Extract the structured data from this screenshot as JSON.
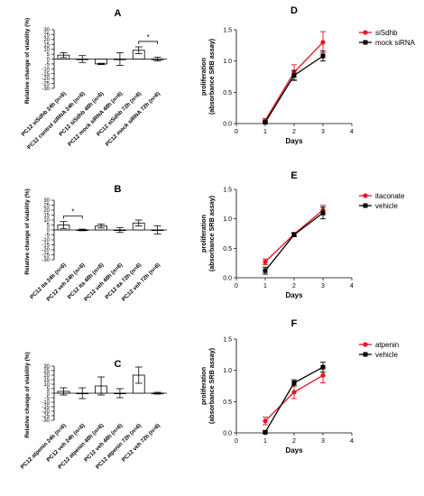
{
  "chart_data": [
    {
      "id": "A",
      "type": "bar",
      "panel_label": "A",
      "ylabel": "Relative change of viability (%)",
      "ylim": [
        -30,
        30
      ],
      "ytick_values": [
        -30,
        -25,
        -20,
        -15,
        -10,
        -5,
        0,
        5,
        10,
        15,
        20,
        25,
        30
      ],
      "yticks": [
        "-30",
        "-25",
        "-20",
        "-15",
        "-10",
        "-5",
        "0",
        "5",
        "10",
        "15",
        "20",
        "25",
        "30"
      ],
      "categories": [
        "PC12 siSdhb 24h (n=6)",
        "PC12 control siRNA 24h (n=6)",
        "PC12 siSdhb 48h (n=6)",
        "PC12 mock siRNA 48h (n=6)",
        "PC12 siSdhb 72h (n=6)",
        "PC12 mock siRNA 72h (n=6)"
      ],
      "values": [
        4,
        0,
        -5,
        0,
        9,
        0
      ],
      "errors": [
        2.5,
        3.5,
        0.7,
        6.5,
        3.5,
        2.0
      ],
      "significance": [
        {
          "from": 4,
          "to": 5,
          "label": "*"
        }
      ]
    },
    {
      "id": "B",
      "type": "bar",
      "panel_label": "B",
      "ylabel": "Relative change of viability (%)",
      "ylim": [
        -30,
        30
      ],
      "ytick_values": [
        -30,
        -25,
        -20,
        -15,
        -10,
        -5,
        0,
        5,
        10,
        15,
        20,
        25,
        30
      ],
      "yticks": [
        "-30",
        "-25",
        "-20",
        "-15",
        "-10",
        "-5",
        "0",
        "5",
        "10",
        "15",
        "20",
        "25",
        "30"
      ],
      "categories": [
        "PC12 ita 24h (n=6)",
        "PC12 veh 24h (n=6)",
        "PC12 ita 48h (n=6)",
        "PC12 veh 48h (n=6)",
        "PC12 ita 72h (n=6)",
        "PC12 veh 72h (n=6)"
      ],
      "values": [
        5,
        0,
        4,
        0,
        7,
        0
      ],
      "errors": [
        3.5,
        0.8,
        2.0,
        2.5,
        3.0,
        4.0
      ],
      "significance": [
        {
          "from": 0,
          "to": 1,
          "label": "*"
        }
      ]
    },
    {
      "id": "C",
      "type": "bar",
      "panel_label": "C",
      "ylabel": "Relative change of viability (%)",
      "ylim": [
        -30,
        30
      ],
      "ytick_values": [
        -30,
        -25,
        -20,
        -15,
        -10,
        -5,
        0,
        5,
        10,
        15,
        20,
        25,
        30
      ],
      "yticks": [
        "-30",
        "-25",
        "-20",
        "-15",
        "-10",
        "-5",
        "0",
        "5",
        "10",
        "15",
        "20",
        "25",
        "30"
      ],
      "categories": [
        "PC12 atpenin 24h (n=6)",
        "PC12 veh 24h (n=6)",
        "PC12 atpenin 48h (n=6)",
        "PC12 veh 48h (n=6)",
        "PC12 atpenin 72h (n=6)",
        "PC12 veh 72h (n=6)"
      ],
      "values": [
        2,
        0,
        8,
        0,
        20,
        0
      ],
      "errors": [
        4.0,
        6.0,
        10.0,
        5.0,
        9.0,
        1.0
      ],
      "significance": []
    },
    {
      "id": "D",
      "type": "line",
      "panel_label": "D",
      "xlabel": "Days",
      "ylabel": "proliferation\n(absorbance SRB assay)",
      "xlim": [
        0,
        4
      ],
      "ylim": [
        0,
        1.5
      ],
      "xtick_values": [
        0,
        1,
        2,
        3,
        4
      ],
      "xticks": [
        "0",
        "1",
        "2",
        "3",
        "4"
      ],
      "ytick_values": [
        0.0,
        0.5,
        1.0,
        1.5
      ],
      "yticks": [
        "0.0",
        "0.5",
        "1.0",
        "1.5"
      ],
      "legend_position": "top-right",
      "series": [
        {
          "name": "siSdhb",
          "color": "#e8141c",
          "x": [
            1,
            2,
            3
          ],
          "values": [
            0.05,
            0.82,
            1.3
          ],
          "errors": [
            0.03,
            0.12,
            0.17
          ]
        },
        {
          "name": "mock siRNA",
          "color": "#000000",
          "x": [
            1,
            2,
            3
          ],
          "values": [
            0.02,
            0.77,
            1.08
          ],
          "errors": [
            0.02,
            0.08,
            0.08
          ]
        }
      ]
    },
    {
      "id": "E",
      "type": "line",
      "panel_label": "E",
      "xlabel": "Days",
      "ylabel": "proliferation\n(absorbance SRB assay)",
      "xlim": [
        0,
        4
      ],
      "ylim": [
        0,
        1.5
      ],
      "xtick_values": [
        0,
        1,
        2,
        3,
        4
      ],
      "xticks": [
        "0",
        "1",
        "2",
        "3",
        "4"
      ],
      "ytick_values": [
        0.0,
        0.5,
        1.0,
        1.5
      ],
      "yticks": [
        "0.0",
        "0.5",
        "1.0",
        "1.5"
      ],
      "legend_position": "top-right",
      "series": [
        {
          "name": "itaconate",
          "color": "#e8141c",
          "x": [
            1,
            2,
            3
          ],
          "values": [
            0.27,
            0.74,
            1.15
          ],
          "errors": [
            0.05,
            0.03,
            0.08
          ]
        },
        {
          "name": "vehicle",
          "color": "#000000",
          "x": [
            1,
            2,
            3
          ],
          "values": [
            0.12,
            0.73,
            1.1
          ],
          "errors": [
            0.06,
            0.03,
            0.1
          ]
        }
      ]
    },
    {
      "id": "F",
      "type": "line",
      "panel_label": "F",
      "xlabel": "Days",
      "ylabel": "proliferation\n(absorbance SRB assay)",
      "xlim": [
        0,
        4
      ],
      "ylim": [
        0,
        1.5
      ],
      "xtick_values": [
        0,
        1,
        2,
        3,
        4
      ],
      "xticks": [
        "0",
        "1",
        "2",
        "3",
        "4"
      ],
      "ytick_values": [
        0.0,
        0.5,
        1.0,
        1.5
      ],
      "yticks": [
        "0.0",
        "0.5",
        "1.0",
        "1.5"
      ],
      "legend_position": "top-right",
      "series": [
        {
          "name": "atpenin",
          "color": "#e8141c",
          "x": [
            1,
            2,
            3
          ],
          "values": [
            0.19,
            0.65,
            0.92
          ],
          "errors": [
            0.06,
            0.1,
            0.12
          ]
        },
        {
          "name": "vehicle",
          "color": "#000000",
          "x": [
            1,
            2,
            3
          ],
          "values": [
            0.01,
            0.8,
            1.05
          ],
          "errors": [
            0.02,
            0.05,
            0.08
          ]
        }
      ]
    }
  ]
}
